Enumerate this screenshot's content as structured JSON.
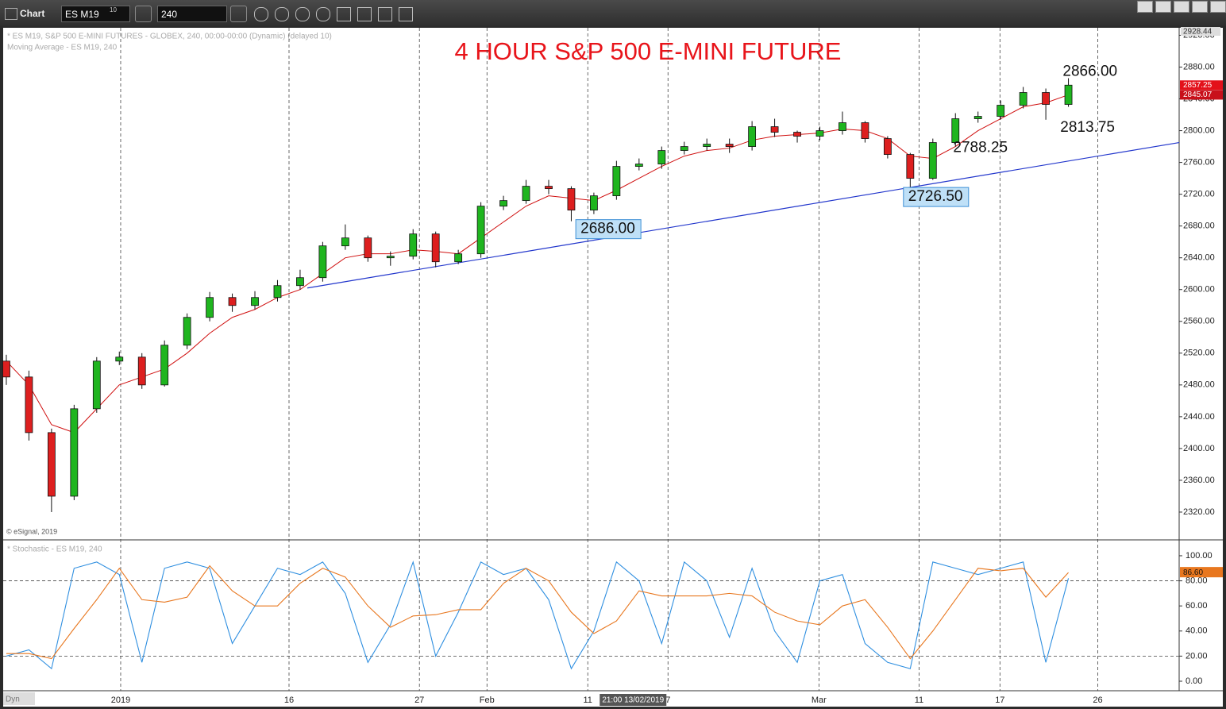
{
  "toolbar": {
    "label": "Chart",
    "symbol": "ES M19",
    "symbol_badge": "10",
    "interval": "240"
  },
  "chart_data": {
    "type": "candlestick",
    "title": "4 HOUR  S&P 500 E-MINI FUTURE",
    "header": [
      "* ES M19, S&P 500 E-MINI FUTURES - GLOBEX, 240, 00:00-00:00 (Dynamic) (delayed 10)",
      "Moving Average - ES M19, 240"
    ],
    "copyright": "© eSignal, 2019",
    "crosshair_label": "21:00 13/02/2019",
    "corner_label": "Dyn",
    "up_color": "#1fb51f",
    "down_color": "#dd1f1f",
    "open": [
      2510,
      2490,
      2420,
      2340,
      2450,
      2510,
      2515,
      2480,
      2530,
      2565,
      2590,
      2580,
      2590,
      2605,
      2615,
      2655,
      2665,
      2640,
      2642,
      2670,
      2635,
      2645,
      2705,
      2712,
      2730,
      2727,
      2700,
      2718,
      2755,
      2758,
      2775,
      2780,
      2783,
      2780,
      2805,
      2798,
      2793,
      2800,
      2810,
      2790,
      2770,
      2740,
      2785,
      2815,
      2818,
      2832,
      2848,
      2833
    ],
    "high": [
      2518,
      2498,
      2425,
      2455,
      2515,
      2522,
      2520,
      2536,
      2570,
      2597,
      2595,
      2598,
      2612,
      2625,
      2660,
      2682,
      2668,
      2648,
      2676,
      2673,
      2650,
      2710,
      2718,
      2738,
      2738,
      2730,
      2722,
      2762,
      2765,
      2780,
      2786,
      2790,
      2790,
      2812,
      2815,
      2800,
      2805,
      2824,
      2812,
      2793,
      2772,
      2790,
      2822,
      2824,
      2838,
      2855,
      2853,
      2866
    ],
    "low": [
      2480,
      2410,
      2320,
      2335,
      2445,
      2505,
      2475,
      2478,
      2525,
      2560,
      2572,
      2575,
      2585,
      2600,
      2610,
      2650,
      2635,
      2630,
      2638,
      2628,
      2632,
      2640,
      2700,
      2708,
      2720,
      2686,
      2695,
      2713,
      2750,
      2752,
      2770,
      2775,
      2772,
      2775,
      2792,
      2785,
      2788,
      2795,
      2785,
      2765,
      2726.5,
      2738,
      2780,
      2810,
      2814,
      2828,
      2813.75,
      2830
    ],
    "close": [
      2490,
      2420,
      2340,
      2450,
      2510,
      2515,
      2480,
      2530,
      2565,
      2590,
      2580,
      2590,
      2605,
      2615,
      2655,
      2665,
      2640,
      2642,
      2670,
      2635,
      2645,
      2705,
      2712,
      2730,
      2727,
      2700,
      2718,
      2755,
      2758,
      2775,
      2780,
      2783,
      2780,
      2805,
      2798,
      2793,
      2800,
      2810,
      2790,
      2770,
      2740,
      2785,
      2815,
      2818,
      2832,
      2848,
      2833,
      2857.25
    ],
    "moving_average": {
      "color": "#d01010",
      "values": [
        2510,
        2480,
        2430,
        2420,
        2450,
        2480,
        2490,
        2500,
        2520,
        2545,
        2565,
        2575,
        2590,
        2600,
        2620,
        2640,
        2645,
        2645,
        2650,
        2648,
        2645,
        2665,
        2685,
        2705,
        2718,
        2715,
        2712,
        2725,
        2740,
        2755,
        2768,
        2775,
        2778,
        2788,
        2793,
        2795,
        2797,
        2802,
        2800,
        2790,
        2768,
        2765,
        2780,
        2800,
        2815,
        2830,
        2835,
        2845.07
      ]
    },
    "trendline": {
      "color": "#2236cc",
      "x": [
        13.32,
        51.9
      ],
      "values": [
        2602,
        2785
      ]
    },
    "annotations": [
      {
        "label": "2866.00",
        "value": 2866,
        "x": 46.75
      },
      {
        "label": "2813.75",
        "value": 2813.75,
        "x": 46.64
      },
      {
        "label": "2788.25",
        "value": 2788.25,
        "x": 41.9
      },
      {
        "label": "2726.50",
        "value": 2726.5,
        "x": 39.7,
        "boxed": true
      },
      {
        "label": "2686.00",
        "value": 2686,
        "x": 25.2,
        "boxed": true
      }
    ],
    "xlim": [
      -0.28,
      51.9
    ],
    "xticks": [
      {
        "value": 5.06,
        "label": "2019"
      },
      {
        "value": 12.51,
        "label": "16"
      },
      {
        "value": 18.28,
        "label": "27"
      },
      {
        "value": 21.27,
        "label": "Feb"
      },
      {
        "value": 25.73,
        "label": "11"
      },
      {
        "value": 29.28,
        "label": "7"
      },
      {
        "value": 35.96,
        "label": "Mar"
      },
      {
        "value": 40.39,
        "label": "11"
      },
      {
        "value": 43.97,
        "label": "17"
      },
      {
        "value": 48.3,
        "label": "26"
      }
    ],
    "ylim": [
      2287,
      2928.44
    ],
    "yticks": [
      {
        "value": 2320,
        "label": "2320.00"
      },
      {
        "value": 2360,
        "label": "2360.00"
      },
      {
        "value": 2400,
        "label": "2400.00"
      },
      {
        "value": 2440,
        "label": "2440.00"
      },
      {
        "value": 2480,
        "label": "2480.00"
      },
      {
        "value": 2520,
        "label": "2520.00"
      },
      {
        "value": 2560,
        "label": "2560.00"
      },
      {
        "value": 2600,
        "label": "2600.00"
      },
      {
        "value": 2640,
        "label": "2640.00"
      },
      {
        "value": 2680,
        "label": "2680.00"
      },
      {
        "value": 2720,
        "label": "2720.00"
      },
      {
        "value": 2760,
        "label": "2760.00"
      },
      {
        "value": 2800,
        "label": "2800.00"
      },
      {
        "value": 2840,
        "label": "2840.00"
      },
      {
        "value": 2880,
        "label": "2880.00"
      },
      {
        "value": 2920,
        "label": "2920.00"
      }
    ],
    "stochastic": {
      "title": "* Stochastic - ES M19, 240",
      "ylim": [
        -7.6,
        112
      ],
      "yticks": [
        {
          "value": 0,
          "label": "0.00"
        },
        {
          "value": 20,
          "label": "20.00"
        },
        {
          "value": 40,
          "label": "40.00"
        },
        {
          "value": 60,
          "label": "60.00"
        },
        {
          "value": 80,
          "label": "80.00"
        },
        {
          "value": 100,
          "label": "100.00"
        }
      ],
      "levels": [
        20,
        80
      ],
      "series": [
        {
          "name": "%K",
          "color": "#2f8fe0",
          "values": [
            20,
            25,
            10,
            90,
            95,
            85,
            15,
            90,
            95,
            90,
            30,
            60,
            90,
            85,
            95,
            70,
            15,
            45,
            95,
            20,
            55,
            95,
            85,
            90,
            65,
            10,
            40,
            95,
            80,
            30,
            95,
            80,
            35,
            90,
            40,
            15,
            80,
            85,
            30,
            15,
            10,
            95,
            90,
            85,
            90,
            95,
            15,
            82
          ]
        },
        {
          "name": "%D",
          "color": "#e8771f",
          "values": [
            22,
            22,
            18,
            42,
            65,
            90,
            65,
            63,
            67,
            92,
            72,
            60,
            60,
            78,
            90,
            83,
            60,
            43,
            52,
            53,
            57,
            57,
            78,
            90,
            80,
            55,
            38,
            48,
            72,
            68,
            68,
            68,
            70,
            68,
            55,
            48,
            45,
            60,
            65,
            43,
            18,
            40,
            65,
            90,
            88,
            90,
            67,
            86.6
          ],
          "value_labels": [
            null,
            null,
            null,
            null,
            null,
            null,
            null,
            null,
            null,
            null,
            null,
            null,
            null,
            null,
            null,
            null,
            null,
            null,
            null,
            null,
            null,
            null,
            null,
            null,
            null,
            null,
            null,
            null,
            null,
            null,
            null,
            null,
            null,
            null,
            null,
            null,
            null,
            null,
            null,
            null,
            null,
            null,
            null,
            null,
            null,
            null,
            null,
            "86.60"
          ]
        }
      ]
    }
  }
}
